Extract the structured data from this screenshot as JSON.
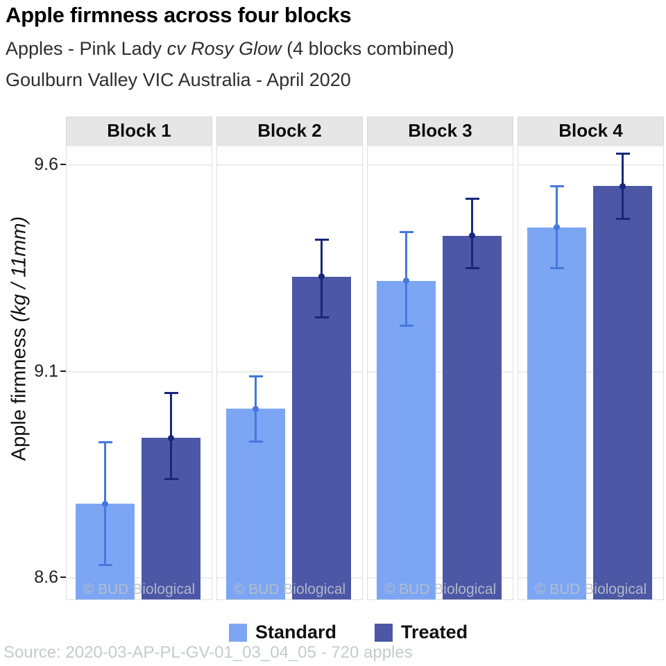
{
  "header": {
    "title": "Apple firmness across four blocks",
    "subtitle1_prefix": "Apples - Pink Lady ",
    "subtitle1_italic": "cv Rosy Glow",
    "subtitle1_suffix": " (4 blocks combined)",
    "subtitle2": "Goulburn Valley VIC Australia - April 2020"
  },
  "y_axis": {
    "label_regular": "Apple firmness ",
    "label_italic": "(kg / 11mm)"
  },
  "chart_data": {
    "type": "bar",
    "facets": [
      "Block 1",
      "Block 2",
      "Block 3",
      "Block 4"
    ],
    "series": [
      {
        "name": "Standard",
        "fill_color": "#7CA6F3",
        "error_color": "#4478DB",
        "means": [
          8.78,
          9.01,
          9.32,
          9.45
        ],
        "ci_low": [
          8.63,
          8.93,
          9.21,
          9.35
        ],
        "ci_high": [
          8.93,
          9.09,
          9.44,
          9.55
        ]
      },
      {
        "name": "Treated",
        "fill_color": "#4C57A6",
        "error_color": "#17277A",
        "means": [
          8.94,
          9.33,
          9.43,
          9.55
        ],
        "ci_low": [
          8.84,
          9.23,
          9.35,
          9.47
        ],
        "ci_high": [
          9.05,
          9.42,
          9.52,
          9.63
        ]
      }
    ],
    "ylabel": "Apple firmness (kg / 11mm)",
    "ylim": [
      8.545,
      9.646
    ],
    "yticks": [
      {
        "label": "9.6",
        "value": 9.6
      },
      {
        "label": "9.1",
        "value": 9.1
      },
      {
        "label": "8.6",
        "value": 8.6
      }
    ],
    "grid": "major-y-only",
    "legend_position": "bottom",
    "error_bars": "95% CI with mean point"
  },
  "watermark": "© BUD Biological",
  "footer": {
    "source": "Source: 2020-03-AP-PL-GV-01_03_04_05 - 720 apples"
  }
}
